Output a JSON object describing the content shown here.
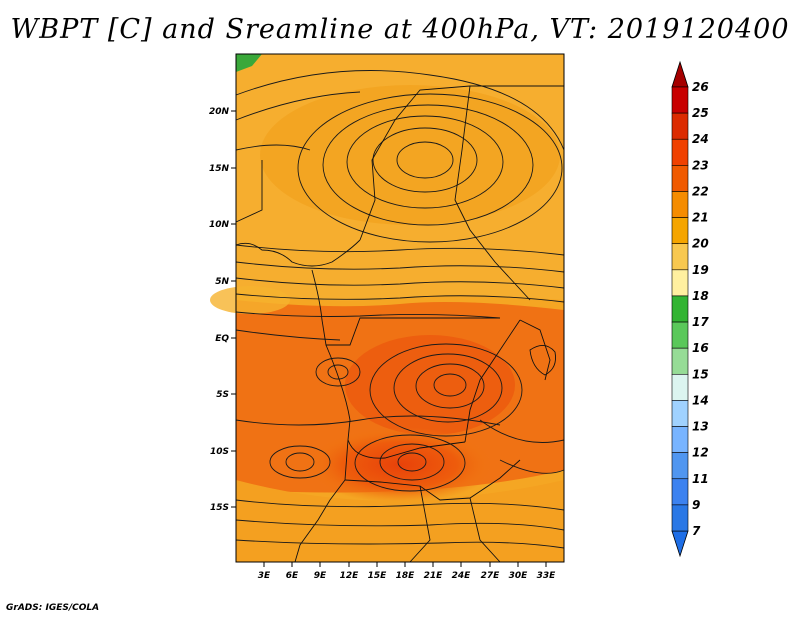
{
  "title": "WBPT [C] and Sreamline at 400hPa, VT: 2019120400",
  "credit": "GrADS: IGES/COLA",
  "map": {
    "lat_labels": [
      "20N",
      "15N",
      "10N",
      "5N",
      "EQ",
      "5S",
      "10S",
      "15S"
    ],
    "lon_labels": [
      "3E",
      "6E",
      "9E",
      "12E",
      "15E",
      "18E",
      "21E",
      "24E",
      "27E",
      "30E",
      "33E"
    ]
  },
  "colorbar": {
    "labels": [
      "26",
      "25",
      "24",
      "23",
      "22",
      "21",
      "20",
      "19",
      "18",
      "17",
      "16",
      "15",
      "14",
      "13",
      "12",
      "11",
      "9",
      "7"
    ],
    "colors": {
      "top_arrow": "#a50000",
      "bottom_arrow": "#1e6ee6",
      "segments": [
        "#c80000",
        "#dc2b00",
        "#f04100",
        "#f05a00",
        "#f58c00",
        "#f5a500",
        "#f8c850",
        "#fff0a0",
        "#32b432",
        "#5ac85a",
        "#96dc96",
        "#dcf5f0",
        "#a0d2ff",
        "#78b4ff",
        "#5096f0",
        "#3c82f0",
        "#2a78e6"
      ]
    }
  }
}
